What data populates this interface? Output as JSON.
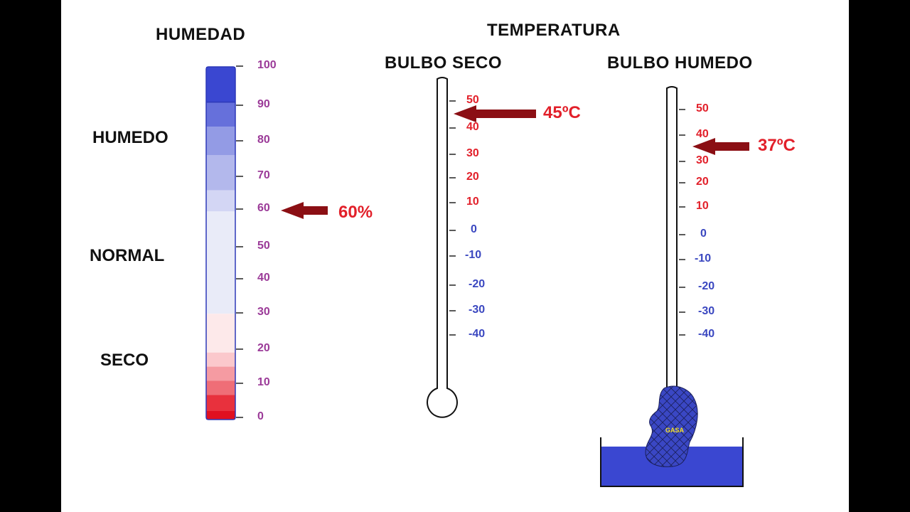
{
  "humidity": {
    "title": "HUMEDAD",
    "zones": {
      "wet": "HUMEDO",
      "normal": "NORMAL",
      "dry": "SECO"
    },
    "scale": [
      "100",
      "90",
      "80",
      "70",
      "60",
      "50",
      "40",
      "30",
      "20",
      "10",
      "0"
    ],
    "reading_value": 60,
    "reading_label": "60%",
    "scale_color": "#9b3a98",
    "band_colors": [
      "#3a47d1",
      "#6670db",
      "#939be5",
      "#b3b8ec",
      "#d3d6f4",
      "#e9ebf8",
      "#fde9ea",
      "#fbc8cc",
      "#f59ba2",
      "#ef6e77",
      "#e8313d",
      "#e01020"
    ]
  },
  "temperature": {
    "title": "TEMPERATURA",
    "dry_bulb": {
      "title": "BULBO SECO",
      "scale": [
        "50",
        "40",
        "30",
        "20",
        "10",
        "0",
        "-10",
        "-20",
        "-30",
        "-40"
      ],
      "reading_value": 45,
      "reading_label": "45ºC"
    },
    "wet_bulb": {
      "title": "BULBO HUMEDO",
      "scale": [
        "50",
        "40",
        "30",
        "20",
        "10",
        "0",
        "-10",
        "-20",
        "-30",
        "-40"
      ],
      "reading_value": 37,
      "reading_label": "37ºC",
      "gauze_label": "GASA"
    },
    "positive_color": "#e2202a",
    "negative_color": "#3a47c0"
  },
  "colors": {
    "arrow": "#8b0f14",
    "water": "#3a47d1",
    "reading": "#e2202a"
  }
}
